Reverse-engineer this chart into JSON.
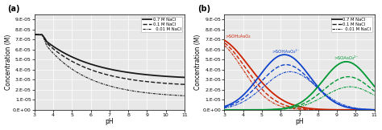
{
  "pH_min": 3,
  "pH_max": 11,
  "pH_step": 0.05,
  "title_a": "(a)",
  "title_b": "(b)",
  "xlabel": "pH",
  "ylabel": "Concentration (M)",
  "ylim": [
    0,
    9.5e-05
  ],
  "xlim": [
    3,
    11
  ],
  "yticks": [
    0,
    1e-05,
    2e-05,
    3e-05,
    4e-05,
    5e-05,
    6e-05,
    7e-05,
    8e-05,
    9e-05
  ],
  "xticks": [
    3,
    4,
    5,
    6,
    7,
    8,
    9,
    10,
    11
  ],
  "legend_entries": [
    "0.7 M NaCl",
    "0.1 M NaCl",
    "  0.01 M NaCl"
  ],
  "label_red": ">SOH₂AsO₄",
  "label_blue": ">SOHAsO₄²⁻",
  "label_green": ">SOAsO₄²⁻",
  "color_black": "#1a1a1a",
  "color_red": "#cc2200",
  "color_blue": "#1144cc",
  "color_green": "#009933",
  "bg_color": "#e8e8e8",
  "fig_bg": "#ffffff",
  "grid_color": "#ffffff",
  "lw_solid": 1.3,
  "lw_dash": 1.0,
  "lw_dot": 0.8
}
